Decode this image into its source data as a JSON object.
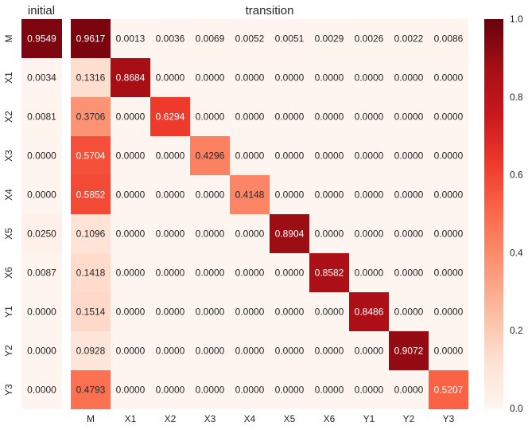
{
  "chart_data": {
    "type": "heatmap",
    "row_labels": [
      "M",
      "X1",
      "X2",
      "X3",
      "X4",
      "X5",
      "X6",
      "Y1",
      "Y2",
      "Y3"
    ],
    "initial": {
      "title": "initial",
      "values": [
        0.9549,
        0.0034,
        0.0081,
        0.0,
        0.0,
        0.025,
        0.0087,
        0.0,
        0.0,
        0.0
      ]
    },
    "transition": {
      "title": "transition",
      "columns": [
        "M",
        "X1",
        "X2",
        "X3",
        "X4",
        "X5",
        "X6",
        "Y1",
        "Y2",
        "Y3"
      ],
      "values": [
        [
          0.9617,
          0.0013,
          0.0036,
          0.0069,
          0.0052,
          0.0051,
          0.0029,
          0.0026,
          0.0022,
          0.0086
        ],
        [
          0.1316,
          0.8684,
          0.0,
          0.0,
          0.0,
          0.0,
          0.0,
          0.0,
          0.0,
          0.0
        ],
        [
          0.3706,
          0.0,
          0.6294,
          0.0,
          0.0,
          0.0,
          0.0,
          0.0,
          0.0,
          0.0
        ],
        [
          0.5704,
          0.0,
          0.0,
          0.4296,
          0.0,
          0.0,
          0.0,
          0.0,
          0.0,
          0.0
        ],
        [
          0.5852,
          0.0,
          0.0,
          0.0,
          0.4148,
          0.0,
          0.0,
          0.0,
          0.0,
          0.0
        ],
        [
          0.1096,
          0.0,
          0.0,
          0.0,
          0.0,
          0.8904,
          0.0,
          0.0,
          0.0,
          0.0
        ],
        [
          0.1418,
          0.0,
          0.0,
          0.0,
          0.0,
          0.0,
          0.8582,
          0.0,
          0.0,
          0.0
        ],
        [
          0.1514,
          0.0,
          0.0,
          0.0,
          0.0,
          0.0,
          0.0,
          0.8486,
          0.0,
          0.0
        ],
        [
          0.0928,
          0.0,
          0.0,
          0.0,
          0.0,
          0.0,
          0.0,
          0.0,
          0.9072,
          0.0
        ],
        [
          0.4793,
          0.0,
          0.0,
          0.0,
          0.0,
          0.0,
          0.0,
          0.0,
          0.0,
          0.5207
        ]
      ]
    },
    "colorbar": {
      "range": [
        0.0,
        1.0
      ],
      "ticks": [
        "0.0",
        "0.2",
        "0.4",
        "0.6",
        "0.8",
        "1.0"
      ],
      "colormap": "Reds",
      "low_color": "#fff5f0",
      "high_color": "#67000d"
    }
  }
}
